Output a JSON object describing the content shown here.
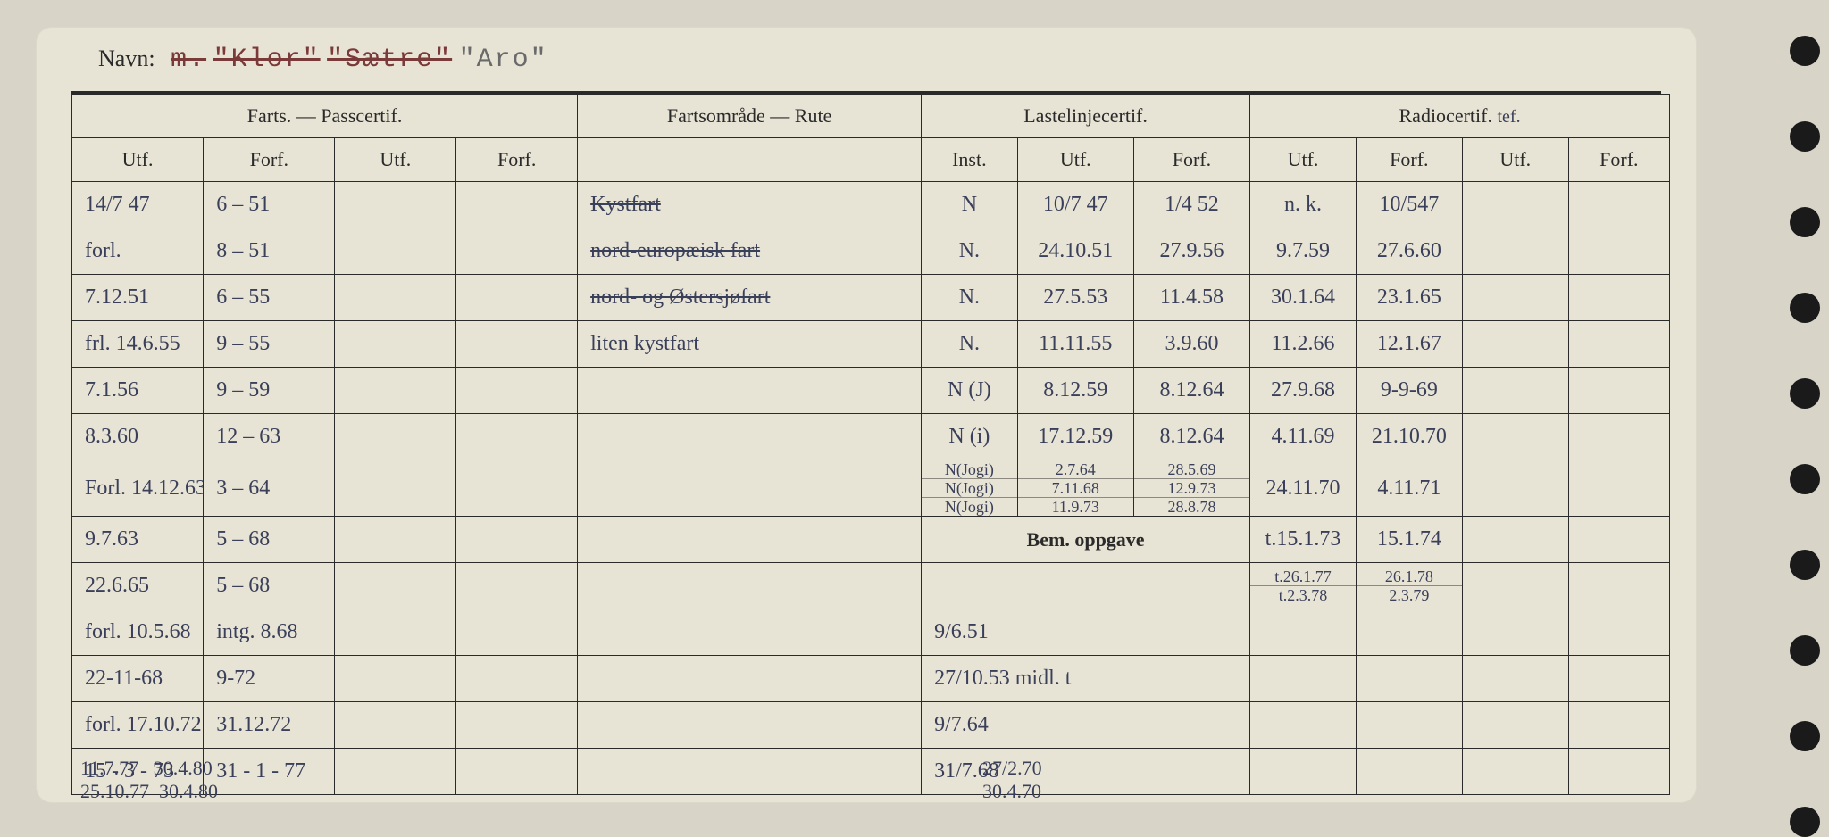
{
  "title": {
    "label": "Navn:",
    "prefix": "m.",
    "name1": "\"Klor\"",
    "name2": "\"Sætre\"",
    "name3": "\"Aro\""
  },
  "headers": {
    "farts": "Farts. — Passcertif.",
    "rute": "Fartsområde — Rute",
    "laste": "Lastelinjecertif.",
    "radio": "Radiocertif.",
    "radio_annot": "tef.",
    "utf": "Utf.",
    "forf": "Forf.",
    "inst": "Inst.",
    "bem": "Bem. oppgave"
  },
  "rows": [
    {
      "f_utf": "14/7 47",
      "f_forf": "6 – 51",
      "rute": "Kystfart",
      "rute_strike": true,
      "inst": "N",
      "l_utf": "10/7 47",
      "l_forf": "1/4 52",
      "r_utf": "n. k.",
      "r_forf": "10/547"
    },
    {
      "f_utf": "forl.",
      "f_forf": "8 – 51",
      "rute": "nord-europæisk fart",
      "rute_strike": true,
      "inst": "N.",
      "l_utf": "24.10.51",
      "l_forf": "27.9.56",
      "r_utf": "9.7.59",
      "r_forf": "27.6.60"
    },
    {
      "f_utf": "7.12.51",
      "f_forf": "6 – 55",
      "rute": "nord- og Østersjøfart",
      "rute_strike": true,
      "inst": "N.",
      "l_utf": "27.5.53",
      "l_forf": "11.4.58",
      "r_utf": "30.1.64",
      "r_forf": "23.1.65"
    },
    {
      "f_utf": "frl. 14.6.55",
      "f_forf": "9 – 55",
      "rute": "liten kystfart",
      "inst": "N.",
      "l_utf": "11.11.55",
      "l_forf": "3.9.60",
      "r_utf": "11.2.66",
      "r_forf": "12.1.67"
    },
    {
      "f_utf": "7.1.56",
      "f_forf": "9 – 59",
      "inst": "N (J)",
      "l_utf": "8.12.59",
      "l_forf": "8.12.64",
      "r_utf": "27.9.68",
      "r_forf": "9-9-69"
    },
    {
      "f_utf": "8.3.60",
      "f_forf": "12 – 63",
      "inst": "N (i)",
      "l_utf": "17.12.59",
      "l_forf": "8.12.64",
      "r_utf": "4.11.69",
      "r_forf": "21.10.70"
    },
    {
      "f_utf": "Forl. 14.12.63",
      "f_forf": "3 – 64",
      "inst_multi": [
        "N(Jogi)",
        "N(Jogi)",
        "N(Jogi)"
      ],
      "l_utf_multi": [
        "2.7.64",
        "7.11.68",
        "11.9.73"
      ],
      "l_forf_multi": [
        "28.5.69",
        "12.9.73",
        "28.8.78"
      ],
      "r_utf": "24.11.70",
      "r_forf": "4.11.71"
    },
    {
      "f_utf": "9.7.63",
      "f_forf": "5 – 68",
      "r_utf": "t.15.1.73",
      "r_forf": "15.1.74",
      "bem_header": true
    },
    {
      "f_utf": "22.6.65",
      "f_forf": "5 – 68",
      "bem": "",
      "r_utf_multi": [
        "t.26.1.77",
        "t.2.3.78"
      ],
      "r_forf_multi": [
        "26.1.78",
        "2.3.79"
      ]
    },
    {
      "f_utf": "forl. 10.5.68",
      "f_forf": "intg. 8.68",
      "bem": "9/6.51"
    },
    {
      "f_utf": "22-11-68",
      "f_forf": "9-72",
      "bem": "27/10.53 midl. t"
    },
    {
      "f_utf": "forl. 17.10.72",
      "f_forf": "31.12.72",
      "bem": "9/7.64"
    },
    {
      "f_utf": "15 - 3 - 73",
      "f_forf": "31 - 1 - 77",
      "bem": "31/7.68"
    }
  ],
  "overflow": [
    {
      "f_utf": "11.7.77",
      "f_forf": "30.4.80",
      "bem": "27/2.70"
    },
    {
      "f_utf": "25.10.77",
      "f_forf": "30.4.80",
      "bem": "30.4.70"
    }
  ],
  "colors": {
    "card_bg": "#e8e4d5",
    "page_bg": "#d8d4c8",
    "ink": "#3a3f5a",
    "print": "#2a2a2a",
    "red_type": "#7b3a3a"
  }
}
